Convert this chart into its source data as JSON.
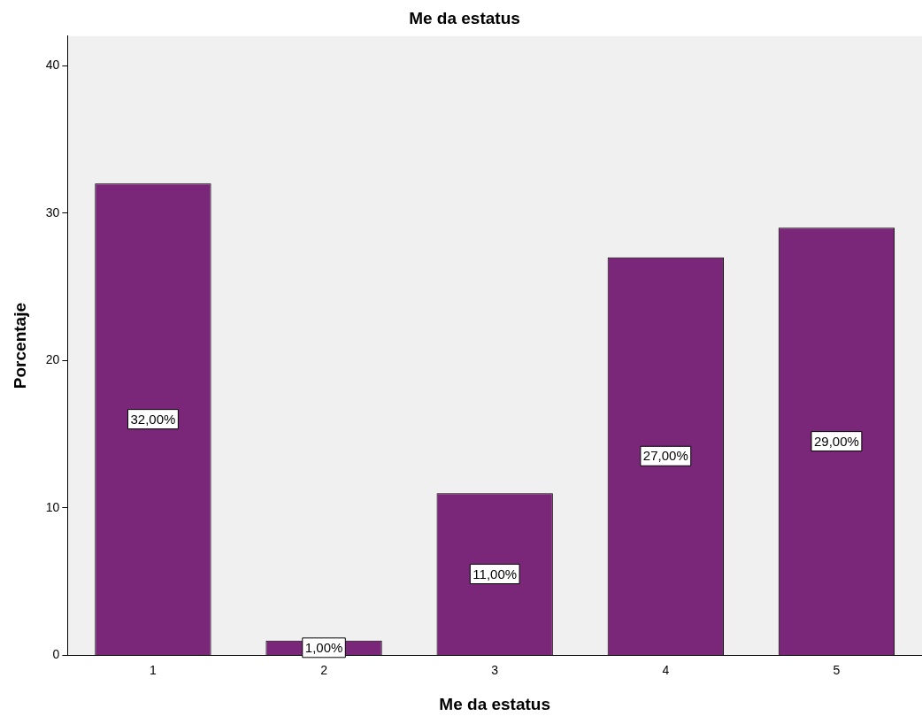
{
  "chart_data": {
    "type": "bar",
    "title": "Me da estatus",
    "xlabel": "Me da estatus",
    "ylabel": "Porcentaje",
    "categories": [
      "1",
      "2",
      "3",
      "4",
      "5"
    ],
    "values": [
      32,
      1,
      11,
      27,
      29
    ],
    "value_labels": [
      "32,00%",
      "1,00%",
      "11,00%",
      "27,00%",
      "29,00%"
    ],
    "color": "#7b2779",
    "ylim": [
      0,
      42
    ],
    "yticks": [
      0,
      10,
      20,
      30,
      40
    ],
    "grid": false,
    "legend": false
  }
}
